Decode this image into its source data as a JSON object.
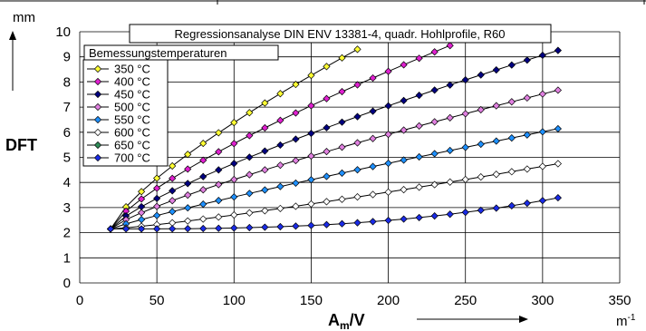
{
  "chart_data": {
    "type": "line",
    "title": "Regressionsanalyse DIN ENV 13381-4, quadr. Hohlprofile, R60",
    "ylabel": "DFT",
    "yunit": "mm",
    "xlabel": "A",
    "xlabel_sub": "m",
    "xlabel_tail": "/V",
    "xunit": "m",
    "xunit_sup": "-1",
    "legend_title": "Bemessungstemperaturen",
    "legend_position": "top-left",
    "grid": true,
    "xlim": [
      0,
      350
    ],
    "ylim": [
      0,
      10
    ],
    "xticks": [
      0,
      50,
      100,
      150,
      200,
      250,
      300,
      350
    ],
    "yticks": [
      0,
      1,
      2,
      3,
      4,
      5,
      6,
      7,
      8,
      9,
      10
    ],
    "series": [
      {
        "name": "350 °C",
        "color": "#ffff33",
        "x_start": 20,
        "x_end": 180,
        "y_start": 2.15,
        "y_end": 9.3,
        "curve": -0.28
      },
      {
        "name": "400 °C",
        "color": "#e020d0",
        "x_start": 20,
        "x_end": 240,
        "y_start": 2.15,
        "y_end": 9.45,
        "curve": -0.28
      },
      {
        "name": "450 °C",
        "color": "#000080",
        "x_start": 20,
        "x_end": 315,
        "y_start": 2.15,
        "y_end": 9.35,
        "curve": -0.25
      },
      {
        "name": "500 °C",
        "color": "#e080e0",
        "x_start": 20,
        "x_end": 315,
        "y_start": 2.15,
        "y_end": 7.75,
        "curve": -0.22
      },
      {
        "name": "550 °C",
        "color": "#1e90ff",
        "x_start": 20,
        "x_end": 315,
        "y_start": 2.15,
        "y_end": 6.2,
        "curve": -0.12
      },
      {
        "name": "600 °C",
        "color": "#ffffff",
        "x_start": 20,
        "x_end": 315,
        "y_start": 2.15,
        "y_end": 4.8,
        "curve": 0.18
      },
      {
        "name": "650 °C",
        "color": "#2e8b57",
        "x_start": 20,
        "x_end": 20,
        "y_start": 2.15,
        "y_end": 2.15,
        "curve": 0
      },
      {
        "name": "700 °C",
        "color": "#1a2be6",
        "x_start": 20,
        "x_end": 315,
        "y_start": 2.15,
        "y_end": 3.45,
        "curve": 1.0
      }
    ]
  }
}
